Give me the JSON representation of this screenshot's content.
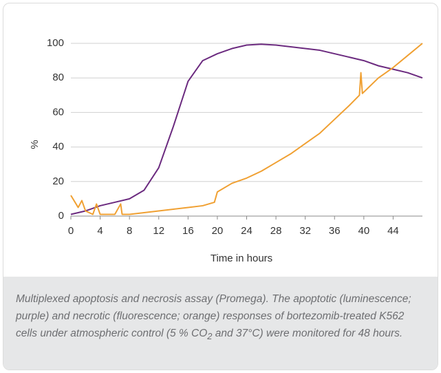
{
  "chart_data": {
    "type": "line",
    "xlabel": "Time in hours",
    "ylabel": "%",
    "xlim": [
      0,
      48
    ],
    "xticks": [
      0,
      4,
      8,
      12,
      16,
      20,
      24,
      28,
      32,
      36,
      40,
      44
    ],
    "ylim": [
      0,
      100
    ],
    "yticks": [
      0,
      20,
      40,
      60,
      80,
      100
    ],
    "grid": true,
    "series": [
      {
        "name": "apoptotic (luminescence)",
        "color": "#6b2a7f",
        "x": [
          0,
          2,
          4,
          6,
          8,
          10,
          12,
          14,
          16,
          18,
          20,
          22,
          24,
          26,
          28,
          30,
          32,
          34,
          36,
          38,
          40,
          42,
          44,
          46,
          48
        ],
        "values": [
          1,
          3,
          6,
          8,
          10,
          15,
          28,
          52,
          78,
          90,
          94,
          97,
          99,
          99.5,
          99,
          98,
          97,
          96,
          94,
          92,
          90,
          87,
          85,
          83,
          80
        ]
      },
      {
        "name": "necrotic (fluorescence)",
        "color": "#f0a032",
        "x": [
          0,
          1,
          1.5,
          2,
          3,
          3.5,
          4,
          6,
          6.8,
          7,
          8,
          10,
          12,
          14,
          16,
          18,
          19.6,
          20,
          22,
          24,
          26,
          28,
          30,
          32,
          34,
          36,
          38,
          39.4,
          39.6,
          39.8,
          42,
          44,
          46,
          48
        ],
        "values": [
          12,
          5,
          9,
          3,
          1,
          7,
          1,
          1,
          7,
          1,
          1,
          2,
          3,
          4,
          5,
          6,
          8,
          14,
          19,
          22,
          26,
          31,
          36,
          42,
          48,
          56,
          64,
          70,
          83,
          71,
          80,
          86,
          93,
          100
        ]
      }
    ]
  },
  "caption": [
    "Multiplexed apoptosis and necrosis assay (Promega). The apoptotic (luminescence; purple) and necrotic (fluorescence; orange) responses of bortezomib-treated K562 cells under atmospheric control (5 % CO",
    "2",
    " and 37°C) were monitored for 48 hours."
  ]
}
